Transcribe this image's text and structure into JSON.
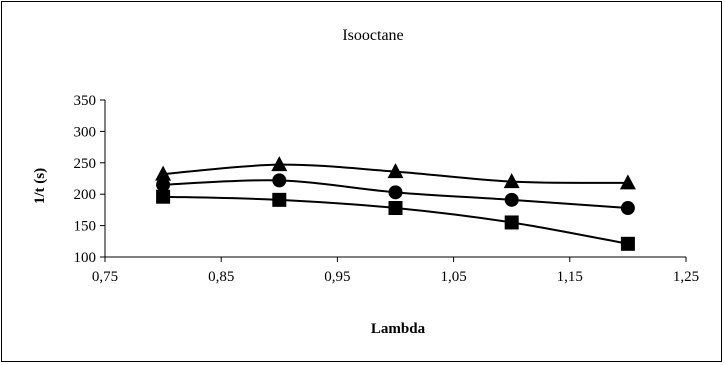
{
  "chart_data": {
    "type": "line",
    "title": "Isooctane",
    "xlabel": "Lambda",
    "ylabel": "1/t (s)",
    "xlim": [
      0.75,
      1.25
    ],
    "ylim": [
      100,
      350
    ],
    "x_ticks": [
      "0,75",
      "0,85",
      "0,95",
      "1,05",
      "1,15",
      "1,25"
    ],
    "x_tick_values": [
      0.75,
      0.85,
      0.95,
      1.05,
      1.15,
      1.25
    ],
    "y_ticks": [
      "100",
      "150",
      "200",
      "250",
      "300",
      "350"
    ],
    "y_tick_values": [
      100,
      150,
      200,
      250,
      300,
      350
    ],
    "grid": false,
    "legend": "none",
    "series": [
      {
        "marker": "triangle",
        "x": [
          0.8,
          0.9,
          1.0,
          1.1,
          1.2
        ],
        "y": [
          232,
          247,
          236,
          220,
          218
        ]
      },
      {
        "marker": "circle",
        "x": [
          0.8,
          0.9,
          1.0,
          1.1,
          1.2
        ],
        "y": [
          215,
          222,
          203,
          191,
          178
        ]
      },
      {
        "marker": "square",
        "x": [
          0.8,
          0.9,
          1.0,
          1.1,
          1.2
        ],
        "y": [
          196,
          191,
          178,
          155,
          121
        ]
      }
    ],
    "line_color": "#000000",
    "marker_color": "#000000"
  }
}
